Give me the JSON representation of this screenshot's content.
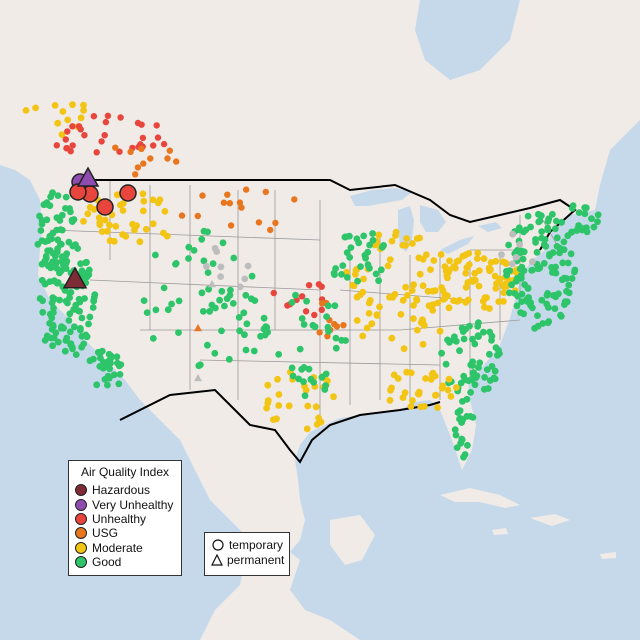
{
  "legend": {
    "title": "Air Quality Index",
    "items": [
      {
        "label": "Hazardous",
        "color": "#7e2b35"
      },
      {
        "label": "Very Unhealthy",
        "color": "#8e4cb0"
      },
      {
        "label": "Unhealthy",
        "color": "#e8453c"
      },
      {
        "label": "USG",
        "color": "#e8761e"
      },
      {
        "label": "Moderate",
        "color": "#f2c414"
      },
      {
        "label": "Good",
        "color": "#2ec46a"
      }
    ]
  },
  "shape_legend": {
    "items": [
      {
        "label": "temporary",
        "shape": "circle-icon"
      },
      {
        "label": "permanent",
        "shape": "triangle-icon"
      }
    ]
  },
  "colors": {
    "land": "#f0ebe7",
    "water": "#c6d9ea",
    "state_border": "#9a9a9a",
    "country_border": "#000000",
    "no_data": "#bdbdbd"
  }
}
